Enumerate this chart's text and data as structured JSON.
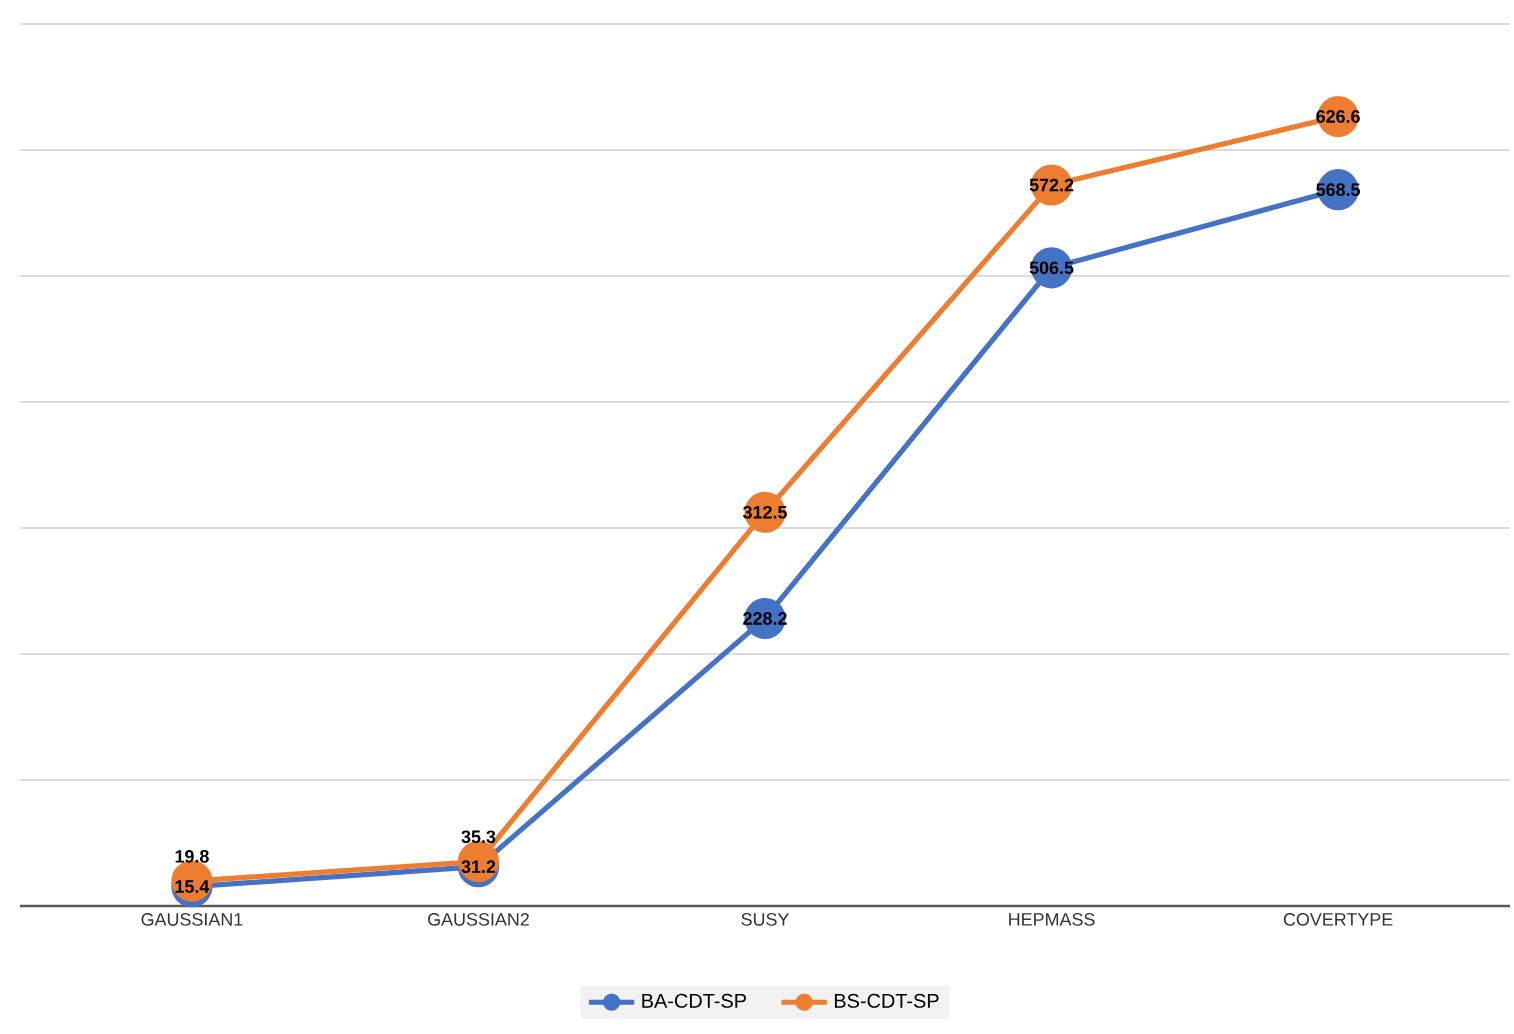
{
  "chart_data": {
    "type": "line",
    "categories": [
      "GAUSSIAN1",
      "GAUSSIAN2",
      "SUSY",
      "HEPMASS",
      "COVERTYPE"
    ],
    "series": [
      {
        "name": "BA-CDT-SP",
        "color": "#4472c4",
        "values": [
          15.4,
          31.2,
          228.2,
          506.5,
          568.5
        ]
      },
      {
        "name": "BS-CDT-SP",
        "color": "#ed7d31",
        "values": [
          19.8,
          35.3,
          312.5,
          572.2,
          626.6
        ]
      }
    ],
    "ylim": [
      0,
      700
    ],
    "yticks": [
      {
        "value": 0,
        "label": null
      },
      {
        "value": 100,
        "label": null
      },
      {
        "value": 200,
        "label": null
      },
      {
        "value": 300,
        "label": null
      },
      {
        "value": 400,
        "label": null
      },
      {
        "value": 500,
        "label": null
      },
      {
        "value": 600,
        "label": null
      },
      {
        "value": 700,
        "label": null
      }
    ],
    "tick_labels": "x",
    "grid": "y",
    "legend": "bottom",
    "marker": "circle",
    "line_style": "solid",
    "data_labels": true
  }
}
